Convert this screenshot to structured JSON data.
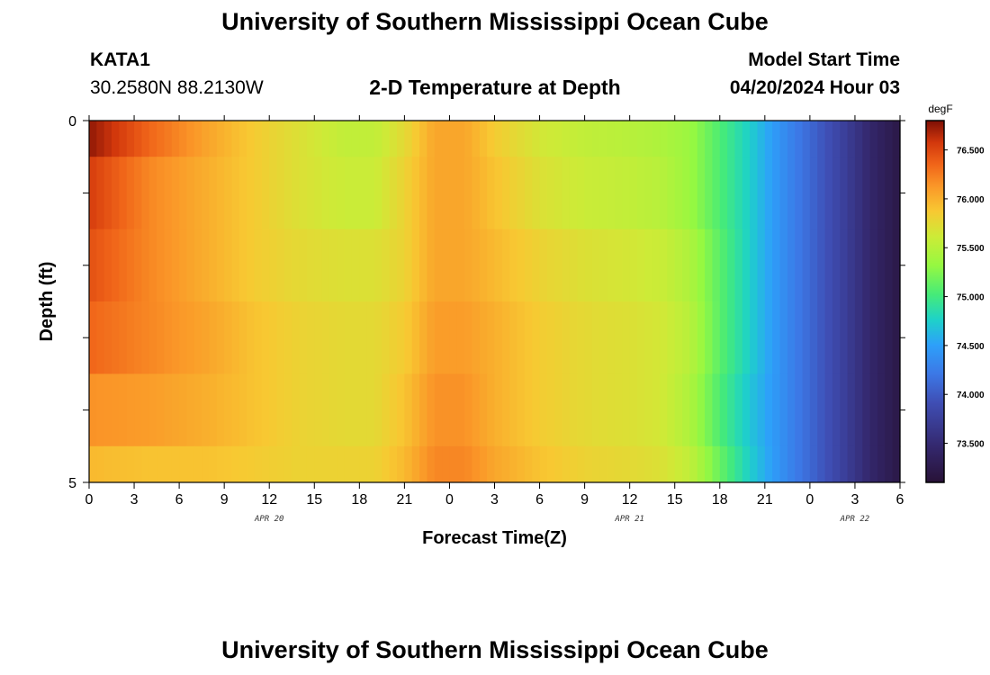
{
  "header": {
    "title": "University of Southern Mississippi Ocean Cube",
    "station": "KATA1",
    "coordinates": "30.2580N  88.2130W",
    "chart_title": "2-D Temperature at Depth",
    "model_start_label": "Model Start Time",
    "model_start_value": "04/20/2024 Hour 03"
  },
  "footer": {
    "title": "University of Southern Mississippi Ocean Cube"
  },
  "chart_data": {
    "type": "heatmap",
    "title": "2-D Temperature at Depth",
    "xlabel": "Forecast Time(Z)",
    "ylabel": "Depth (ft)",
    "x_tick_labels": [
      "0",
      "3",
      "6",
      "9",
      "12",
      "15",
      "18",
      "21",
      "0",
      "3",
      "6",
      "9",
      "12",
      "15",
      "18",
      "21",
      "0",
      "3",
      "6"
    ],
    "x_range_hours": [
      0,
      54
    ],
    "date_labels": [
      {
        "label": "APR 20",
        "hour": 12
      },
      {
        "label": "APR 21",
        "hour": 36
      },
      {
        "label": "APR 22",
        "hour": 51
      }
    ],
    "y_tick_labels": [
      "0",
      "5"
    ],
    "y_range": [
      0,
      5
    ],
    "colorbar": {
      "unit": "degF",
      "range": [
        73.1,
        76.8
      ],
      "tick_labels": [
        "76.500",
        "76.000",
        "75.500",
        "75.000",
        "74.500",
        "74.000",
        "73.500"
      ],
      "tick_values": [
        76.5,
        76.0,
        75.5,
        75.0,
        74.5,
        74.0,
        73.5
      ]
    },
    "depth_bands": [
      0,
      0.5,
      1.5,
      2.5,
      3.5,
      4.5,
      5.0
    ],
    "time_knots": [
      0,
      4,
      8,
      11,
      14,
      17,
      19,
      21,
      23,
      25,
      27,
      30,
      33,
      36,
      38,
      40,
      42,
      44,
      46,
      48,
      50,
      52,
      54
    ],
    "temperature_profiles": [
      {
        "depth": 0.0,
        "values": [
          76.75,
          76.35,
          76.05,
          75.85,
          75.7,
          75.55,
          75.55,
          75.75,
          76.05,
          76.05,
          75.85,
          75.65,
          75.55,
          75.5,
          75.45,
          75.35,
          75.05,
          74.75,
          74.4,
          74.1,
          73.8,
          73.45,
          73.2
        ]
      },
      {
        "depth": 0.5,
        "values": [
          76.55,
          76.2,
          76.0,
          75.85,
          75.7,
          75.6,
          75.6,
          75.8,
          76.05,
          76.05,
          75.9,
          75.7,
          75.6,
          75.55,
          75.5,
          75.35,
          75.05,
          74.75,
          74.4,
          74.1,
          73.8,
          73.45,
          73.2
        ]
      },
      {
        "depth": 1.5,
        "values": [
          76.45,
          76.2,
          76.0,
          75.85,
          75.75,
          75.7,
          75.7,
          75.8,
          76.05,
          76.05,
          75.95,
          75.8,
          75.7,
          75.65,
          75.6,
          75.45,
          75.1,
          74.75,
          74.4,
          74.1,
          73.8,
          73.45,
          73.2
        ]
      },
      {
        "depth": 2.5,
        "values": [
          76.35,
          76.2,
          76.05,
          75.9,
          75.8,
          75.75,
          75.75,
          75.85,
          76.1,
          76.1,
          76.0,
          75.85,
          75.75,
          75.7,
          75.65,
          75.5,
          75.1,
          74.75,
          74.4,
          74.1,
          73.8,
          73.45,
          73.2
        ]
      },
      {
        "depth": 3.5,
        "values": [
          76.15,
          76.1,
          76.0,
          75.9,
          75.8,
          75.75,
          75.75,
          75.9,
          76.15,
          76.15,
          76.0,
          75.85,
          75.75,
          75.7,
          75.65,
          75.45,
          75.05,
          74.7,
          74.4,
          74.1,
          73.8,
          73.45,
          73.2
        ]
      },
      {
        "depth": 4.5,
        "values": [
          75.95,
          75.9,
          75.9,
          75.85,
          75.8,
          75.8,
          75.8,
          75.95,
          76.2,
          76.2,
          76.05,
          75.9,
          75.8,
          75.75,
          75.7,
          75.55,
          75.15,
          74.75,
          74.4,
          74.1,
          73.8,
          73.45,
          73.2
        ]
      }
    ]
  }
}
